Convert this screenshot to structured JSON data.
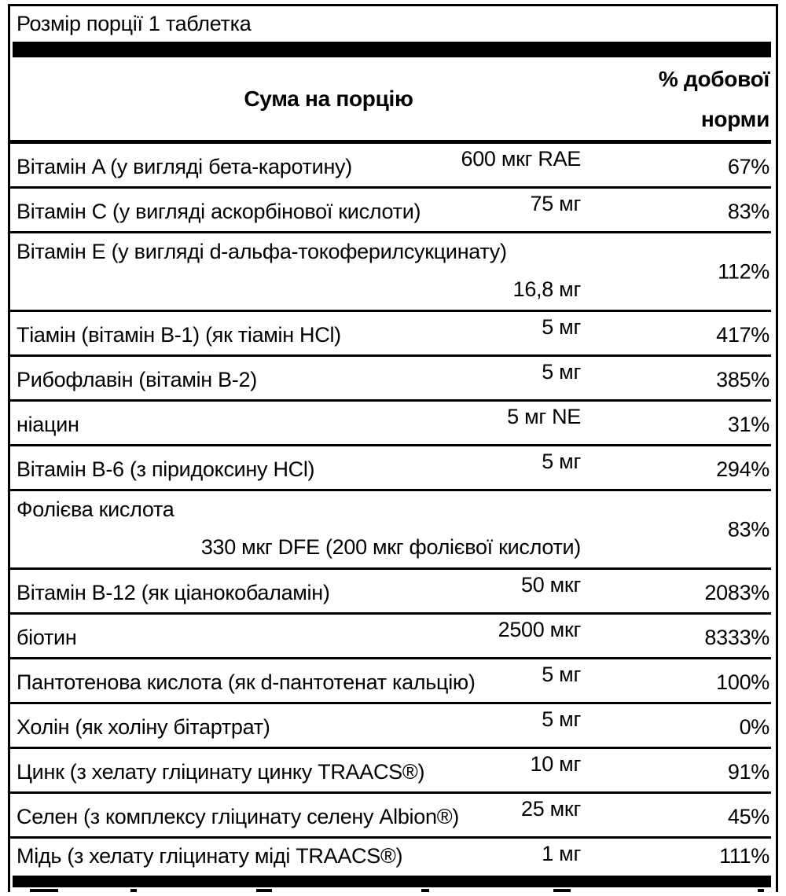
{
  "label": {
    "serving_size": "Розмір порції 1 таблетка",
    "header": {
      "amount_col": "Сума на порцію",
      "dv_line1": "% добової",
      "dv_line2": "норми"
    },
    "rows": [
      {
        "name": "Вітамін A (у вигляді бета-каротину)",
        "amount": "600 мкг RAE",
        "dv": "67%",
        "two_line": false
      },
      {
        "name": "Вітамін C (у вигляді аскорбінової кислоти)",
        "amount": "75 мг",
        "dv": "83%",
        "two_line": false
      },
      {
        "name": "Вітамін E (у вигляді d-альфа-токоферилсукцинату)",
        "amount": "16,8 мг",
        "dv": "112%",
        "two_line": true
      },
      {
        "name": "Тіамін (вітамін B-1) (як тіамін HCl)",
        "amount": "5 мг",
        "dv": "417%",
        "two_line": false
      },
      {
        "name": "Рибофлавін (вітамін B-2)",
        "amount": "5 мг",
        "dv": "385%",
        "two_line": false
      },
      {
        "name": "ніацин",
        "amount": "5 мг NE",
        "dv": "31%",
        "two_line": false
      },
      {
        "name": "Вітамін B-6 (з піридоксину HCl)",
        "amount": "5 мг",
        "dv": "294%",
        "two_line": false
      },
      {
        "name": "Фолієва кислота",
        "amount": "330 мкг DFE (200 мкг фолієвої кислоти)",
        "dv": "83%",
        "two_line": true
      },
      {
        "name": "Вітамін B-12 (як ціанокобаламін)",
        "amount": "50 мкг",
        "dv": "2083%",
        "two_line": false
      },
      {
        "name": "біотин",
        "amount": "2500 мкг",
        "dv": "8333%",
        "two_line": false
      },
      {
        "name": "Пантотенова кислота (як d-пантотенат кальцію)",
        "amount": "5 мг",
        "dv": "100%",
        "two_line": false
      },
      {
        "name": "Холін (як холіну бітартрат)",
        "amount": "5 мг",
        "dv": "0%",
        "two_line": false
      },
      {
        "name": "Цинк (з хелату гліцинату цинку TRAACS®)",
        "amount": "10 мг",
        "dv": "91%",
        "two_line": false
      },
      {
        "name": "Селен (з комплексу гліцинату селену Albion®)",
        "amount": "25 мкг",
        "dv": "45%",
        "two_line": false
      },
      {
        "name": "Мідь (з хелату гліцинату міді TRAACS®)",
        "amount": "1 мг",
        "dv": "111%",
        "two_line": false
      }
    ]
  },
  "colors": {
    "text": "#000000",
    "background": "#ffffff",
    "rule": "#000000"
  }
}
